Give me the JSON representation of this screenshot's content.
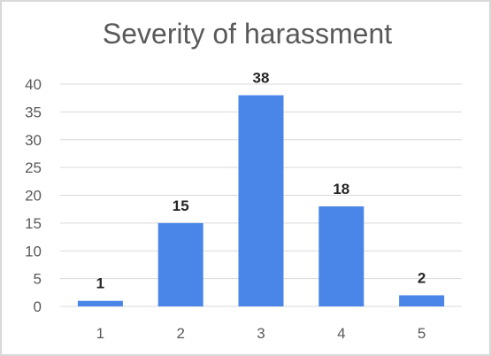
{
  "chart_data": {
    "type": "bar",
    "title": "Severity of harassment",
    "categories": [
      "1",
      "2",
      "3",
      "4",
      "5"
    ],
    "values": [
      1,
      15,
      38,
      18,
      2
    ],
    "data_labels": [
      "1",
      "15",
      "38",
      "18",
      "2"
    ],
    "y_ticks": [
      "0",
      "5",
      "10",
      "15",
      "20",
      "25",
      "30",
      "35",
      "40"
    ],
    "ylim": [
      0,
      40
    ],
    "xlabel": "",
    "ylabel": "",
    "grid": true,
    "legend": "none",
    "colors": {
      "bar": "#4a86e8",
      "grid": "#d9d9d9",
      "text": "#595959"
    }
  }
}
